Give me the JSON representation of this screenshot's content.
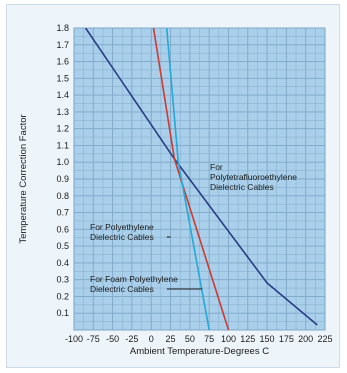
{
  "chart_data": {
    "type": "line",
    "xlabel": "Ambient Temperature-Degrees C",
    "ylabel": "Temperature Correction Factor",
    "xlim": [
      -100,
      225
    ],
    "ylim": [
      0,
      1.8
    ],
    "x_ticks": [
      -100,
      -75,
      -50,
      -25,
      0,
      25,
      50,
      75,
      100,
      125,
      150,
      175,
      200,
      225
    ],
    "y_ticks": [
      0.1,
      0.2,
      0.3,
      0.4,
      0.5,
      0.6,
      0.7,
      0.8,
      0.9,
      1.0,
      1.1,
      1.2,
      1.3,
      1.4,
      1.5,
      1.6,
      1.7,
      1.8
    ],
    "x_tick_labels": [
      "-100",
      "-75",
      "-50",
      "-25",
      "0",
      "25",
      "50",
      "75",
      "100",
      "125",
      "150",
      "175",
      "200",
      "225"
    ],
    "y_tick_labels": [
      "0.1",
      "0.2",
      "0.3",
      "0.4",
      "0.5",
      "0.6",
      "0.7",
      "0.8",
      "0.9",
      "1.0",
      "1.1",
      "1.2",
      "1.3",
      "1.4",
      "1.5",
      "1.6",
      "1.7",
      "1.8"
    ],
    "grid": true,
    "colors": {
      "plot_background": "#a9cfea",
      "grid": "#7fa8c8",
      "ptfe": "#2a3d84",
      "polyethylene": "#cc3b32",
      "foam": "#27a9d6"
    },
    "series": [
      {
        "key": "ptfe",
        "x": [
          -85,
          30,
          150,
          215
        ],
        "y": [
          1.8,
          1.02,
          0.28,
          0.03
        ]
      },
      {
        "key": "polyethylene",
        "x": [
          3,
          30,
          100
        ],
        "y": [
          1.8,
          1.02,
          0.0
        ]
      },
      {
        "key": "foam",
        "x": [
          20,
          35,
          75
        ],
        "y": [
          1.8,
          1.0,
          0.0
        ]
      }
    ],
    "annotations": [
      {
        "key": "ptfe",
        "lines": [
          "For",
          "Polytetrafluoroethylene",
          "Dielectric Cables"
        ],
        "target": [
          38,
          0.93
        ]
      },
      {
        "key": "polyethylene",
        "lines": [
          "For Polyethylene",
          "Dielectric Cables"
        ],
        "target": [
          25,
          0.56
        ]
      },
      {
        "key": "foam",
        "lines": [
          "For Foam Polyethylene",
          "Dielectric Cables"
        ],
        "target": [
          66,
          0.15
        ]
      }
    ]
  }
}
